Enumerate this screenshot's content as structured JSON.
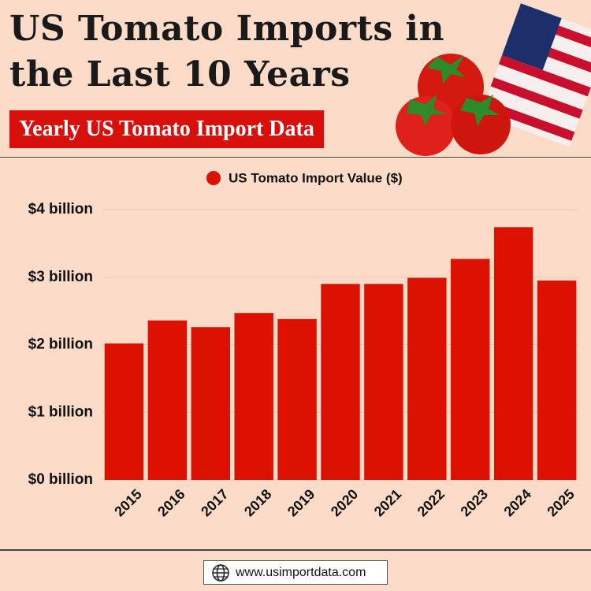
{
  "title": "US Tomato Imports in the Last 10 Years",
  "subtitle": "Yearly US Tomato Import Data",
  "footer": "www.usimportdata.com",
  "chart_data": {
    "type": "bar",
    "categories": [
      "2015",
      "2016",
      "2017",
      "2018",
      "2019",
      "2020",
      "2021",
      "2022",
      "2023",
      "2024",
      "2025"
    ],
    "series": [
      {
        "name": "US Tomato Import Value ($)",
        "color": "#dd1100",
        "values": [
          2.02,
          2.36,
          2.26,
          2.47,
          2.38,
          2.9,
          2.9,
          2.99,
          3.27,
          3.74,
          2.95
        ]
      }
    ],
    "ylim": [
      0,
      4
    ],
    "yticks": [
      {
        "value": 0,
        "label": "$0 billion"
      },
      {
        "value": 1,
        "label": "$1 billion"
      },
      {
        "value": 2,
        "label": "$2 billion"
      },
      {
        "value": 3,
        "label": "$3 billion"
      },
      {
        "value": 4,
        "label": "$4 billion"
      }
    ],
    "grid": true,
    "legend": "top"
  }
}
